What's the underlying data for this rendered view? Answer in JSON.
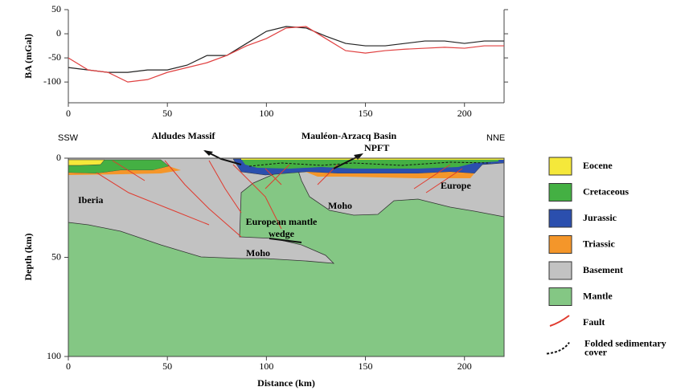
{
  "chart_data": [
    {
      "type": "line",
      "y_label": "BA (mGal)",
      "x": [
        0,
        10,
        20,
        30,
        40,
        50,
        60,
        70,
        80,
        90,
        100,
        110,
        120,
        130,
        140,
        150,
        160,
        170,
        180,
        190,
        200,
        210,
        220
      ],
      "series": [
        {
          "color": "#222222",
          "values": [
            -70,
            -75,
            -80,
            -80,
            -75,
            -75,
            -65,
            -45,
            -45,
            -20,
            5,
            15,
            12,
            -5,
            -20,
            -25,
            -25,
            -20,
            -15,
            -15,
            -20,
            -15,
            -15
          ]
        },
        {
          "color": "#e04040",
          "values": [
            -50,
            -75,
            -80,
            -100,
            -95,
            -80,
            -70,
            -60,
            -45,
            -25,
            -10,
            12,
            15,
            -10,
            -35,
            -40,
            -35,
            -32,
            -30,
            -28,
            -30,
            -25,
            -25
          ]
        }
      ],
      "xlim": [
        0,
        220
      ],
      "xticks": [
        0,
        50,
        100,
        150,
        200
      ],
      "ylim": [
        -143,
        50
      ],
      "yticks": [
        50,
        0,
        -50,
        -100
      ]
    },
    {
      "type": "cross-section",
      "x_label": "Distance (km)",
      "y_label": "Depth (km)",
      "xlim": [
        0,
        220
      ],
      "xticks": [
        0,
        50,
        100,
        150,
        200
      ],
      "ylim": [
        0,
        100
      ],
      "yticks": [
        0,
        50,
        100
      ],
      "annotations": [
        "SSW",
        "NNE",
        "Aldudes Massif",
        "Mauléon-Arzacq Basin",
        "NPFT",
        "Iberia",
        "Europe",
        "Moho",
        "Moho",
        "European mantle wedge"
      ],
      "legend": [
        {
          "name": "Eocene",
          "color": "#f5e83a"
        },
        {
          "name": "Cretaceous",
          "color": "#44b043"
        },
        {
          "name": "Jurassic",
          "color": "#2b4fae"
        },
        {
          "name": "Triassic",
          "color": "#f4962a"
        },
        {
          "name": "Basement",
          "color": "#c2c2c2"
        },
        {
          "name": "Mantle",
          "color": "#84c784"
        },
        {
          "name": "Fault",
          "color": "#e03a2e"
        },
        {
          "name": "Folded sedimentary cover",
          "color": "#111111"
        }
      ]
    }
  ]
}
